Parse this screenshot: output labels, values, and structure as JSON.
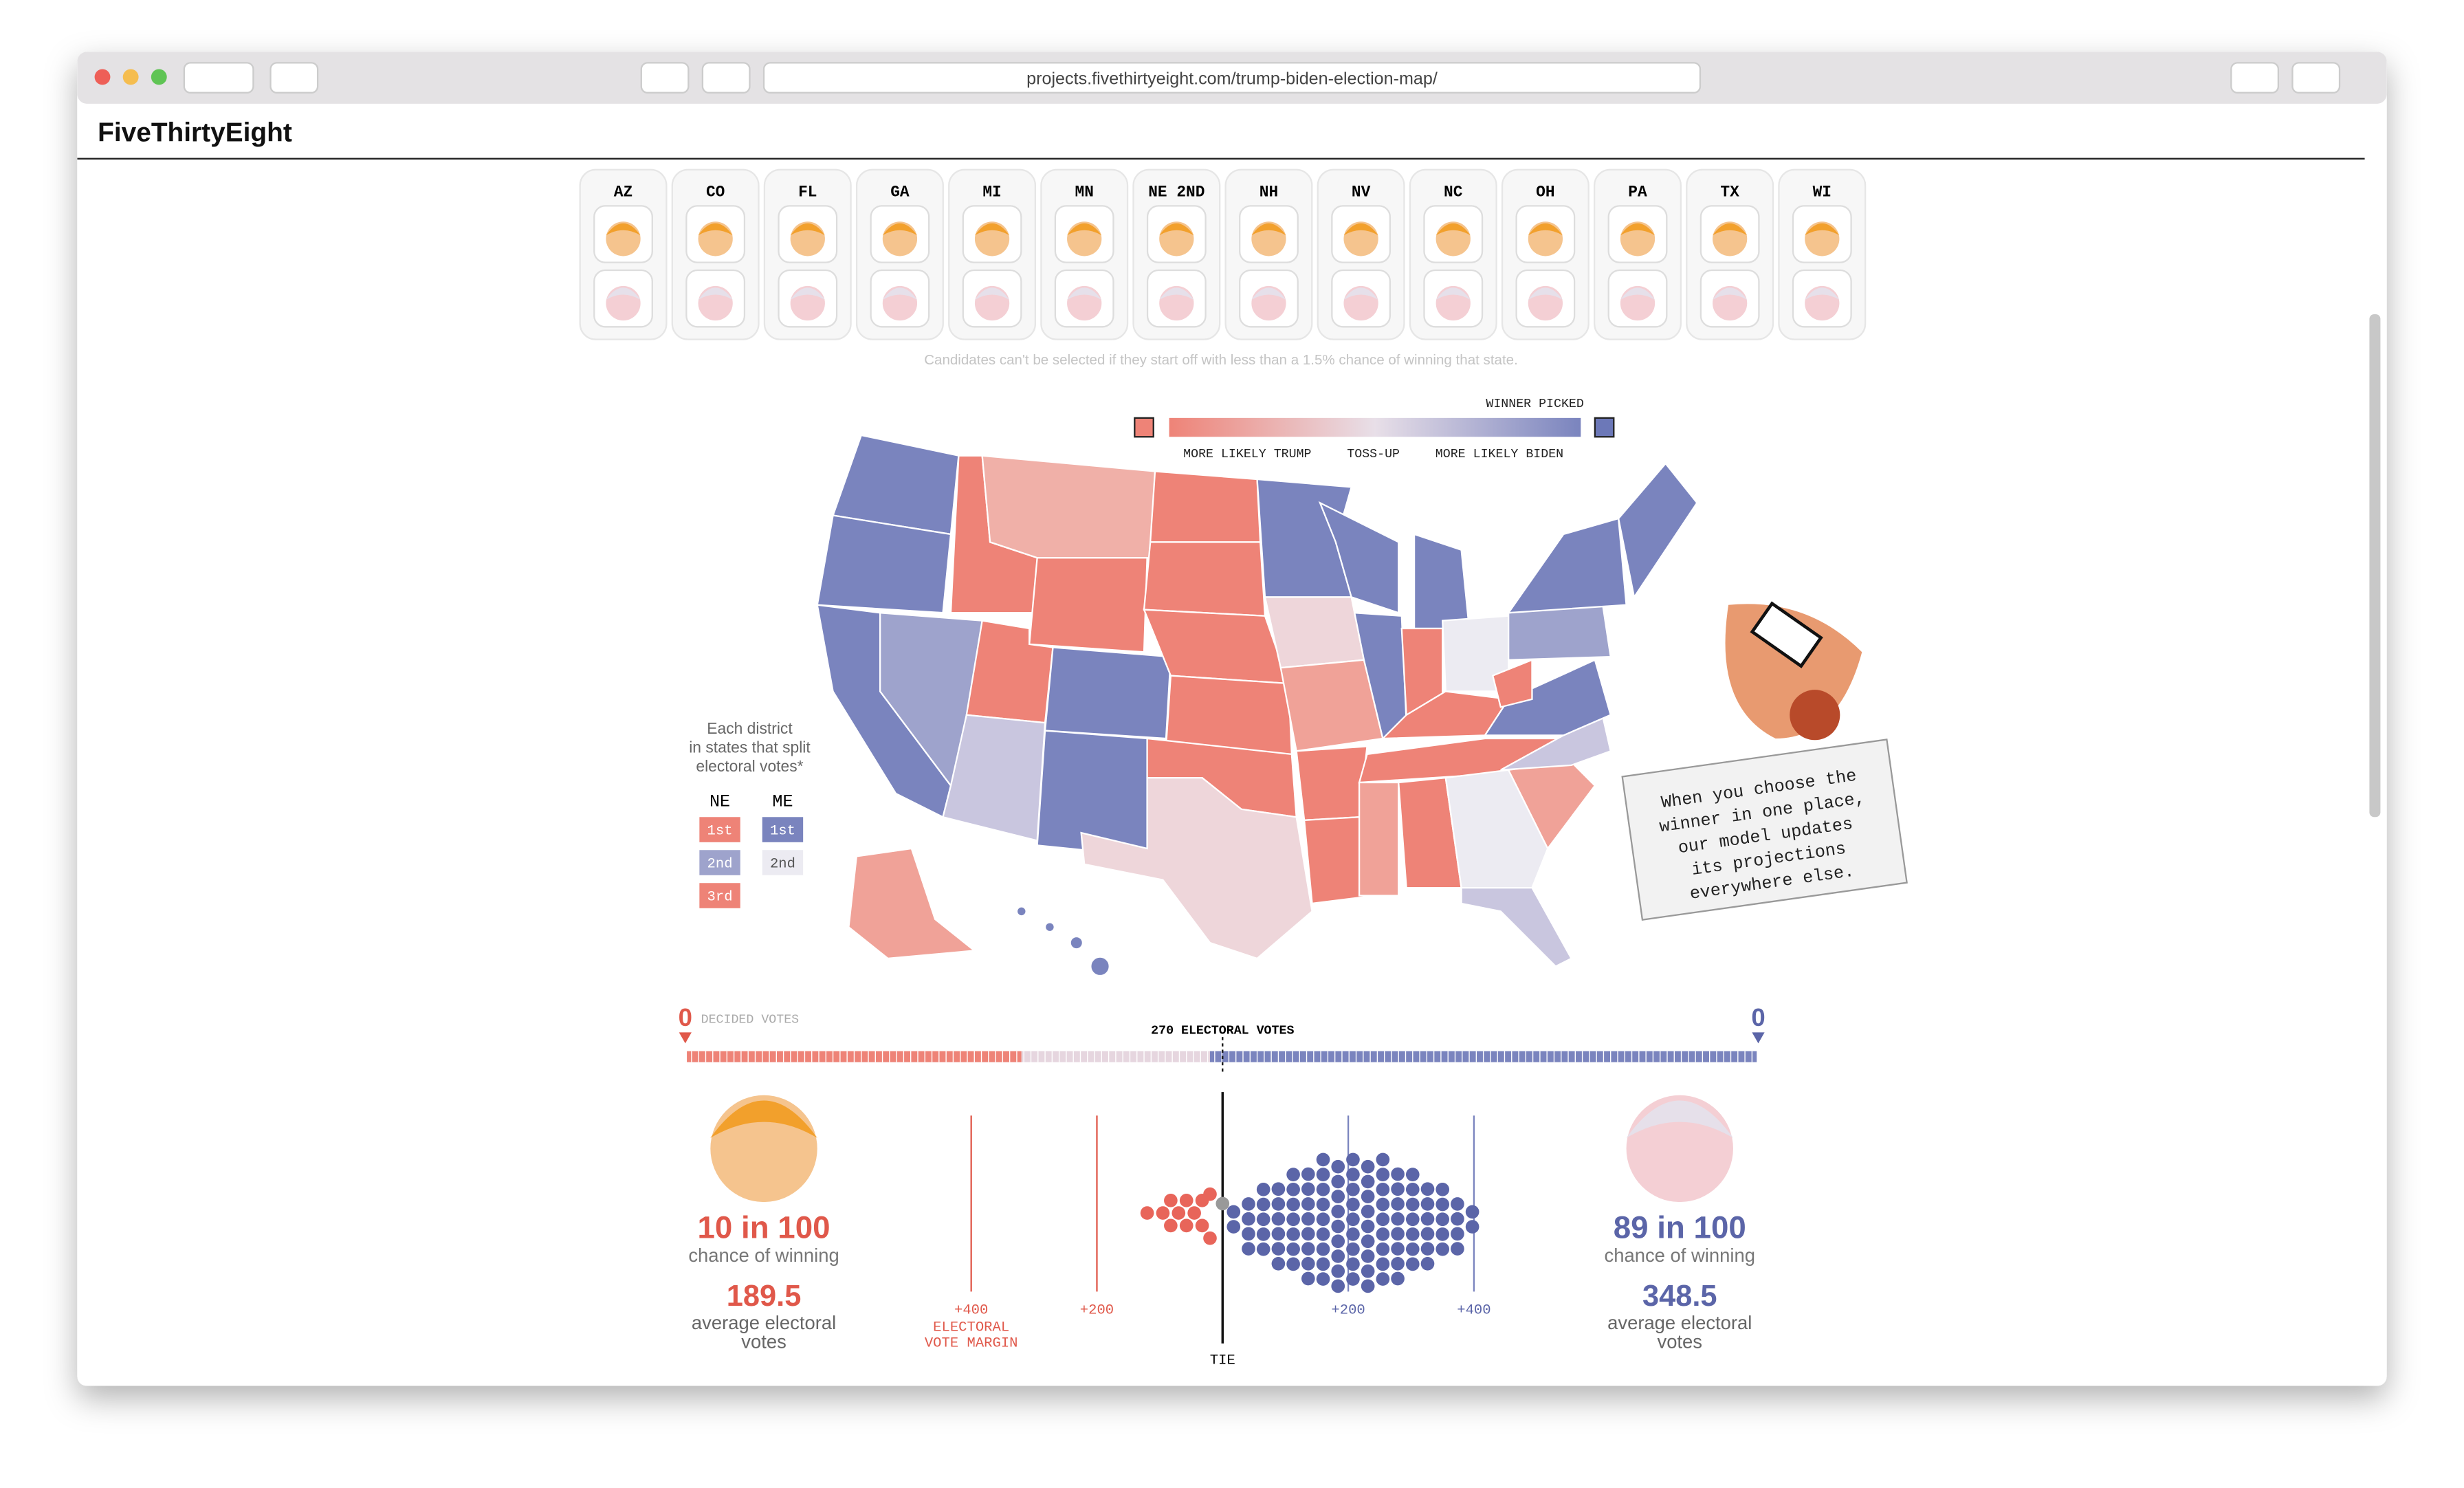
{
  "browser": {
    "url": "projects.fivethirtyeight.com/trump-biden-election-map/"
  },
  "header": {
    "logo": "FiveThirtyEight"
  },
  "state_picker": {
    "states": [
      "AZ",
      "CO",
      "FL",
      "GA",
      "MI",
      "MN",
      "NE 2ND",
      "NH",
      "NV",
      "NC",
      "OH",
      "PA",
      "TX",
      "WI"
    ],
    "note": "Candidates can't be selected if they start off with less than a 1.5% chance of winning that state."
  },
  "map_legend": {
    "winner_picked": "WINNER PICKED",
    "more_likely_trump": "MORE LIKELY TRUMP",
    "toss_up": "TOSS-UP",
    "more_likely_biden": "MORE LIKELY BIDEN"
  },
  "district_legend": {
    "title": [
      "Each district",
      "in states that split",
      "electoral votes*"
    ],
    "ne": "NE",
    "me": "ME",
    "ne_districts": [
      "1st",
      "2nd",
      "3rd"
    ],
    "me_districts": [
      "1st",
      "2nd"
    ]
  },
  "callout": [
    "When you choose the",
    "winner in one place,",
    "our model updates",
    "its projections",
    "everywhere else."
  ],
  "vote_bar": {
    "trump_decided": "0",
    "decided_label": "DECIDED VOTES",
    "center_label": "270 ELECTORAL VOTES",
    "biden_decided": "0"
  },
  "trump": {
    "chance": "10 in 100",
    "chance_label": "chance of winning",
    "average": "189.5",
    "average_label": [
      "average electoral",
      "votes"
    ]
  },
  "biden": {
    "chance": "89 in 100",
    "chance_label": "chance of winning",
    "average": "348.5",
    "average_label": [
      "average electoral",
      "votes"
    ]
  },
  "margin_axis": {
    "left_400": "+400",
    "left_200": "+200",
    "tie": "TIE",
    "right_200": "+200",
    "right_400": "+400",
    "title": [
      "ELECTORAL",
      "VOTE MARGIN"
    ]
  }
}
